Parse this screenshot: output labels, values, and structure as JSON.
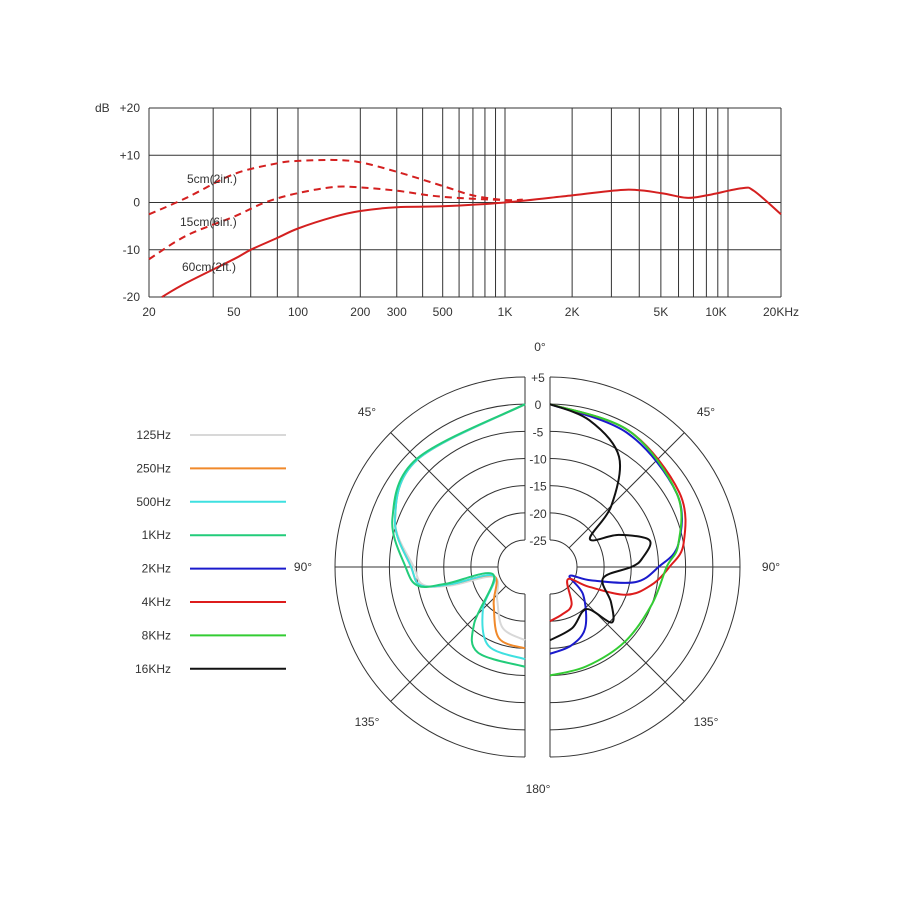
{
  "chart_data": [
    {
      "type": "line",
      "xscale": "log",
      "xlim": [
        20,
        20000
      ],
      "ylim": [
        -20,
        20
      ],
      "ylabel": "dB",
      "grid": true,
      "ytick_labels": [
        "+20",
        "+10",
        "0",
        "-10",
        "-20"
      ],
      "ytick_values": [
        20,
        10,
        0,
        -10,
        -20
      ],
      "xtick_labels": [
        "20",
        "50",
        "100",
        "200",
        "300",
        "500",
        "1K",
        "2K",
        "5K",
        "10K",
        "20KHz"
      ],
      "xtick_values": [
        20,
        50,
        100,
        200,
        300,
        500,
        1000,
        2000,
        5000,
        10000,
        20000
      ],
      "series": [
        {
          "name": "5cm(2in.)",
          "style": "dashed",
          "color": "#d42020",
          "points": [
            [
              20,
              -2.5
            ],
            [
              30,
              1
            ],
            [
              50,
              6
            ],
            [
              80,
              8.3
            ],
            [
              100,
              8.8
            ],
            [
              150,
              9
            ],
            [
              200,
              8.5
            ],
            [
              300,
              6.5
            ],
            [
              500,
              3.5
            ],
            [
              700,
              1.5
            ],
            [
              1000,
              0.5
            ],
            [
              1200,
              0.6
            ]
          ]
        },
        {
          "name": "15cm(6in.)",
          "style": "dashed",
          "color": "#d42020",
          "points": [
            [
              20,
              -12
            ],
            [
              30,
              -7
            ],
            [
              50,
              -3
            ],
            [
              70,
              0
            ],
            [
              100,
              2
            ],
            [
              150,
              3.3
            ],
            [
              200,
              3.2
            ],
            [
              300,
              2.5
            ],
            [
              500,
              1.2
            ],
            [
              1000,
              0.5
            ],
            [
              1200,
              0.6
            ]
          ]
        },
        {
          "name": "60cm(2ft.)",
          "style": "solid",
          "color": "#d42020",
          "points": [
            [
              23,
              -20
            ],
            [
              30,
              -17
            ],
            [
              50,
              -12
            ],
            [
              60,
              -10
            ],
            [
              80,
              -7.5
            ],
            [
              100,
              -5.5
            ],
            [
              150,
              -3
            ],
            [
              200,
              -1.8
            ],
            [
              300,
              -1
            ],
            [
              500,
              -0.8
            ],
            [
              1000,
              0
            ],
            [
              2000,
              1.5
            ],
            [
              3500,
              2.7
            ],
            [
              5000,
              2
            ],
            [
              6500,
              1
            ],
            [
              8000,
              1.5
            ],
            [
              12000,
              3
            ],
            [
              14000,
              2.5
            ],
            [
              20000,
              -2.5
            ]
          ]
        }
      ]
    },
    {
      "type": "polar",
      "rlim": [
        -25,
        5
      ],
      "ring_labels": [
        "+5",
        "0",
        "-5",
        "-10",
        "-15",
        "-20",
        "-25"
      ],
      "ring_values": [
        5,
        0,
        -5,
        -10,
        -15,
        -20,
        -25
      ],
      "angle_labels": {
        "top": "0°",
        "upper_left": "45°",
        "upper_right": "45°",
        "left": "90°",
        "right": "90°",
        "lower_left": "135°",
        "lower_right": "135°",
        "bottom": "180°"
      },
      "legend": "left",
      "series": [
        {
          "name": "125Hz",
          "color": "#d8d8d8",
          "side": "left",
          "points": [
            [
              0,
              0
            ],
            [
              45,
              -2
            ],
            [
              70,
              -4.5
            ],
            [
              90,
              -9.5
            ],
            [
              100,
              -11
            ],
            [
              104,
              -16
            ],
            [
              108,
              -24
            ],
            [
              140,
              -22
            ],
            [
              160,
              -18
            ],
            [
              180,
              -16.5
            ]
          ]
        },
        {
          "name": "250Hz",
          "color": "#f0892a",
          "side": "left",
          "points": [
            [
              0,
              0
            ],
            [
              45,
              -2
            ],
            [
              70,
              -4.5
            ],
            [
              90,
              -9
            ],
            [
              100,
              -10.5
            ],
            [
              103,
              -16
            ],
            [
              106,
              -24
            ],
            [
              140,
              -21
            ],
            [
              160,
              -16
            ],
            [
              180,
              -15
            ]
          ]
        },
        {
          "name": "500Hz",
          "color": "#3fe0e0",
          "side": "left",
          "points": [
            [
              0,
              0
            ],
            [
              45,
              -2
            ],
            [
              70,
              -4.5
            ],
            [
              90,
              -9
            ],
            [
              100,
              -10.5
            ],
            [
              103,
              -16
            ],
            [
              106,
              -24
            ],
            [
              135,
              -19
            ],
            [
              155,
              -14
            ],
            [
              180,
              -13
            ]
          ]
        },
        {
          "name": "1KHz",
          "color": "#22cc7a",
          "side": "left",
          "points": [
            [
              0,
              0
            ],
            [
              45,
              -1.8
            ],
            [
              70,
              -4
            ],
            [
              90,
              -8
            ],
            [
              100,
              -10
            ],
            [
              102,
              -15
            ],
            [
              104,
              -24
            ],
            [
              138,
              -16
            ],
            [
              151,
              -12
            ],
            [
              180,
              -11.6
            ]
          ]
        },
        {
          "name": "2KHz",
          "color": "#1a1acc",
          "side": "right",
          "points": [
            [
              0,
              0
            ],
            [
              30,
              -1.5
            ],
            [
              60,
              -3
            ],
            [
              80,
              -6
            ],
            [
              90,
              -10
            ],
            [
              100,
              -14
            ],
            [
              108,
              -22
            ],
            [
              115,
              -26
            ],
            [
              130,
              -22
            ],
            [
              150,
              -17
            ],
            [
              165,
              -15
            ],
            [
              180,
              -14
            ]
          ]
        },
        {
          "name": "4KHz",
          "color": "#dd1c1c",
          "side": "right",
          "points": [
            [
              0,
              0
            ],
            [
              30,
              -1
            ],
            [
              60,
              -2.5
            ],
            [
              80,
              -5
            ],
            [
              90,
              -8
            ],
            [
              100,
              -11
            ],
            [
              110,
              -15
            ],
            [
              117,
              -22
            ],
            [
              125,
              -26
            ],
            [
              150,
              -22
            ],
            [
              165,
              -21
            ],
            [
              180,
              -20
            ]
          ]
        },
        {
          "name": "8KHz",
          "color": "#33cc33",
          "side": "right",
          "points": [
            [
              0,
              0
            ],
            [
              30,
              -1
            ],
            [
              60,
              -3
            ],
            [
              80,
              -6
            ],
            [
              90,
              -8.5
            ],
            [
              110,
              -10
            ],
            [
              135,
              -10.5
            ],
            [
              160,
              -10.5
            ],
            [
              180,
              -10
            ]
          ]
        },
        {
          "name": "16KHz",
          "color": "#111111",
          "side": "right",
          "points": [
            [
              0,
              0
            ],
            [
              15,
              -2
            ],
            [
              32,
              -6
            ],
            [
              45,
              -14
            ],
            [
              55,
              -21
            ],
            [
              65,
              -16
            ],
            [
              75,
              -11
            ],
            [
              85,
              -13
            ],
            [
              90,
              -15
            ],
            [
              102,
              -20
            ],
            [
              120,
              -17
            ],
            [
              132,
              -14.7
            ],
            [
              139,
              -19.7
            ],
            [
              160,
              -18
            ],
            [
              180,
              -16.5
            ]
          ]
        }
      ]
    }
  ]
}
